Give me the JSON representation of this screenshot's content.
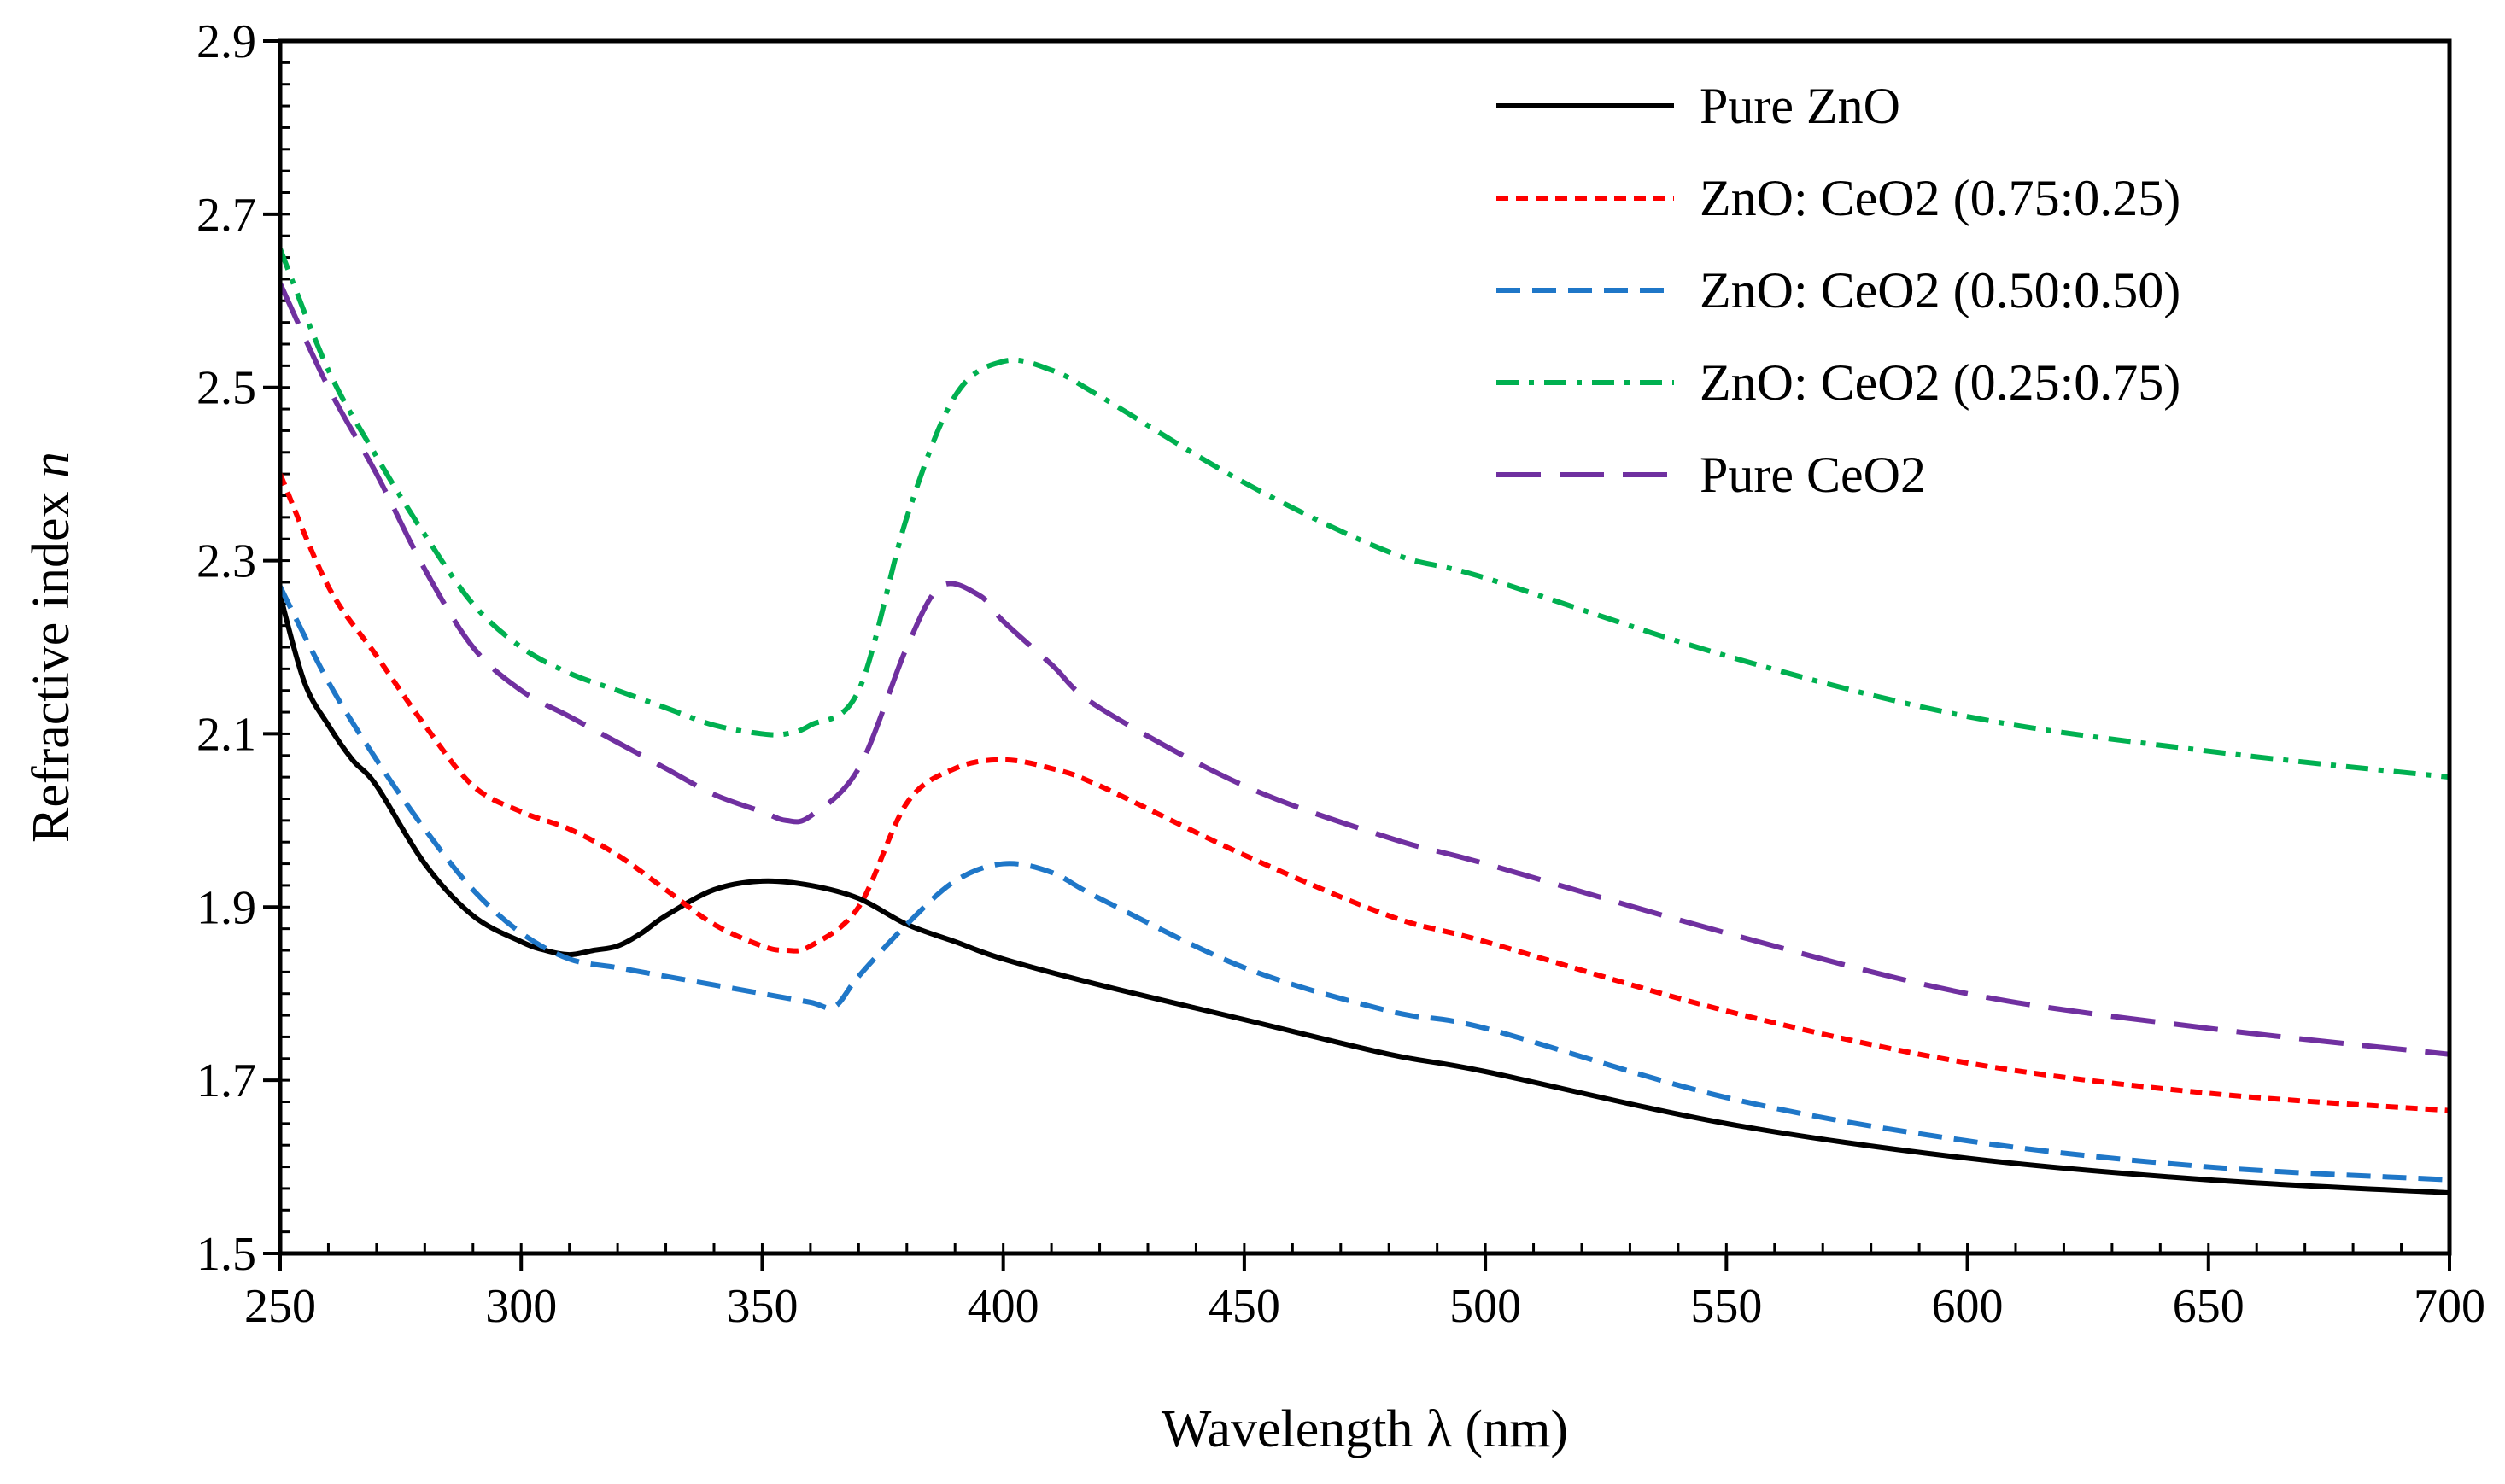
{
  "chart_data": {
    "type": "line",
    "title": "",
    "xlabel": "Wavelength λ (nm)",
    "ylabel_main": "Refractive index ",
    "ylabel_var": "n",
    "xlim": [
      250,
      700
    ],
    "ylim": [
      1.5,
      2.9
    ],
    "xticks": [
      "250",
      "300",
      "350",
      "400",
      "450",
      "500",
      "550",
      "600",
      "650",
      "700"
    ],
    "yticks": [
      "1.5",
      "1.7",
      "1.9",
      "2.1",
      "2.3",
      "2.5",
      "2.7",
      "2.9"
    ],
    "grid": false,
    "legend_position": "top-right",
    "series": [
      {
        "name": "Pure ZnO",
        "color": "#000000",
        "style": "solid",
        "x": [
          250,
          255,
          260,
          265,
          270,
          280,
          290,
          300,
          305,
          310,
          315,
          320,
          325,
          330,
          340,
          350,
          360,
          370,
          380,
          390,
          400,
          420,
          450,
          480,
          500,
          550,
          600,
          650,
          700
        ],
        "y": [
          2.26,
          2.16,
          2.11,
          2.07,
          2.04,
          1.95,
          1.89,
          1.86,
          1.85,
          1.845,
          1.85,
          1.855,
          1.87,
          1.89,
          1.92,
          1.93,
          1.925,
          1.91,
          1.88,
          1.86,
          1.84,
          1.81,
          1.77,
          1.73,
          1.71,
          1.65,
          1.61,
          1.585,
          1.57
        ]
      },
      {
        "name": "ZnO: CeO2 (0.75:0.25)",
        "color": "#ff0000",
        "style": "short-dash",
        "x": [
          250,
          260,
          270,
          280,
          290,
          300,
          310,
          320,
          330,
          340,
          350,
          355,
          360,
          370,
          380,
          390,
          400,
          410,
          420,
          450,
          480,
          500,
          550,
          600,
          650,
          700
        ],
        "y": [
          2.4,
          2.27,
          2.19,
          2.11,
          2.04,
          2.01,
          1.99,
          1.96,
          1.92,
          1.88,
          1.855,
          1.85,
          1.855,
          1.9,
          2.02,
          2.06,
          2.07,
          2.06,
          2.04,
          1.96,
          1.89,
          1.86,
          1.78,
          1.72,
          1.685,
          1.665
        ]
      },
      {
        "name": "ZnO: CeO2 (0.50:0.50)",
        "color": "#1f77c8",
        "style": "medium-dash",
        "x": [
          250,
          260,
          270,
          280,
          290,
          300,
          310,
          320,
          330,
          340,
          350,
          360,
          365,
          370,
          380,
          390,
          400,
          410,
          420,
          450,
          480,
          500,
          550,
          600,
          650,
          700
        ],
        "y": [
          2.27,
          2.16,
          2.07,
          1.99,
          1.92,
          1.87,
          1.84,
          1.83,
          1.82,
          1.81,
          1.8,
          1.79,
          1.785,
          1.82,
          1.88,
          1.93,
          1.95,
          1.94,
          1.91,
          1.83,
          1.78,
          1.76,
          1.68,
          1.63,
          1.6,
          1.585
        ]
      },
      {
        "name": "ZnO: CeO2 (0.25:0.75)",
        "color": "#00b050",
        "style": "dash-dot",
        "x": [
          250,
          260,
          270,
          280,
          290,
          300,
          310,
          320,
          330,
          340,
          350,
          355,
          360,
          370,
          380,
          390,
          400,
          410,
          420,
          450,
          480,
          500,
          550,
          600,
          650,
          700
        ],
        "y": [
          2.66,
          2.52,
          2.42,
          2.33,
          2.25,
          2.2,
          2.17,
          2.15,
          2.13,
          2.11,
          2.1,
          2.1,
          2.11,
          2.15,
          2.35,
          2.49,
          2.53,
          2.52,
          2.49,
          2.39,
          2.31,
          2.28,
          2.19,
          2.12,
          2.08,
          2.05
        ]
      },
      {
        "name": "Pure CeO2",
        "color": "#7030a0",
        "style": "long-dash",
        "x": [
          250,
          260,
          270,
          280,
          290,
          300,
          310,
          320,
          330,
          340,
          350,
          355,
          360,
          370,
          380,
          387,
          395,
          400,
          410,
          420,
          450,
          480,
          500,
          550,
          600,
          650,
          700
        ],
        "y": [
          2.62,
          2.5,
          2.4,
          2.29,
          2.2,
          2.15,
          2.12,
          2.09,
          2.06,
          2.03,
          2.01,
          2.0,
          2.005,
          2.06,
          2.2,
          2.27,
          2.26,
          2.23,
          2.18,
          2.13,
          2.04,
          1.98,
          1.95,
          1.87,
          1.8,
          1.76,
          1.73
        ]
      }
    ]
  }
}
